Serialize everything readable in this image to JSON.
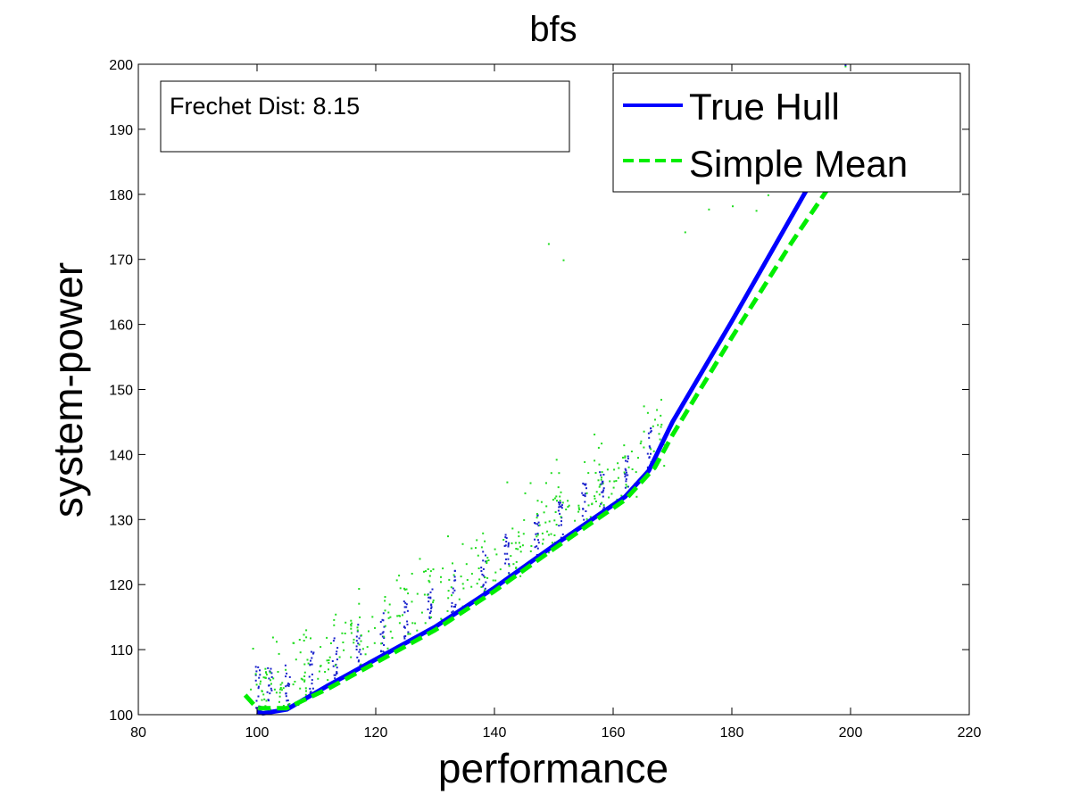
{
  "chart_data": {
    "type": "line",
    "title": "bfs",
    "xlabel": "performance",
    "ylabel": "system-power",
    "xlim": [
      80,
      220
    ],
    "ylim": [
      100,
      200
    ],
    "xticks": [
      80,
      100,
      120,
      140,
      160,
      180,
      200,
      220
    ],
    "yticks": [
      100,
      110,
      120,
      130,
      140,
      150,
      160,
      170,
      180,
      190,
      200
    ],
    "grid": false,
    "legend_position": "top-right",
    "annotation": "Frechet Dist: 8.15",
    "series": [
      {
        "name": "True Hull",
        "style": "solid",
        "color": "#0000ff",
        "x": [
          100,
          101,
          105,
          112,
          120,
          130,
          140,
          150,
          162,
          166,
          170,
          180,
          190,
          199
        ],
        "y": [
          100.5,
          100.2,
          100.8,
          104.5,
          108.5,
          113.5,
          119.5,
          126.0,
          133.5,
          137.5,
          145.0,
          160.5,
          176.5,
          191.0
        ]
      },
      {
        "name": "Simple Mean",
        "style": "dashed",
        "color": "#00ee00",
        "x": [
          98,
          100,
          105,
          112,
          120,
          130,
          140,
          150,
          162,
          167,
          170,
          180,
          190,
          200
        ],
        "y": [
          103.0,
          101.0,
          101.0,
          104.0,
          108.0,
          113.0,
          119.0,
          125.5,
          133.0,
          138.0,
          143.0,
          158.0,
          172.5,
          186.0
        ]
      }
    ]
  }
}
